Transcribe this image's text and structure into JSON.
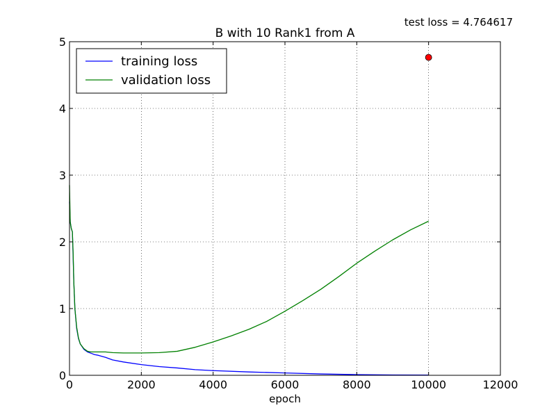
{
  "chart_data": {
    "type": "line",
    "title": "B with 10 Rank1 from A",
    "xlabel": "epoch",
    "ylabel": "",
    "xlim": [
      0,
      12000
    ],
    "ylim": [
      0,
      5
    ],
    "xticks": [
      0,
      2000,
      4000,
      6000,
      8000,
      10000,
      12000
    ],
    "yticks": [
      0,
      1,
      2,
      3,
      4,
      5
    ],
    "xtick_labels": [
      "0",
      "2000",
      "4000",
      "6000",
      "8000",
      "10000",
      "12000"
    ],
    "ytick_labels": [
      "0",
      "1",
      "2",
      "3",
      "4",
      "5"
    ],
    "grid": true,
    "legend_position": "top-left",
    "annotation": "test loss = 4.764617",
    "series": [
      {
        "name": "training loss",
        "color": "#0000ff",
        "x": [
          0,
          20,
          50,
          80,
          100,
          120,
          150,
          200,
          250,
          300,
          400,
          500,
          600,
          700,
          800,
          1000,
          1200,
          1500,
          2000,
          2500,
          3000,
          3500,
          4000,
          5000,
          6000,
          7000,
          8000,
          9000,
          10000
        ],
        "y": [
          2.6,
          2.3,
          2.2,
          2.15,
          1.8,
          1.4,
          1.0,
          0.7,
          0.55,
          0.47,
          0.39,
          0.35,
          0.33,
          0.31,
          0.3,
          0.27,
          0.23,
          0.2,
          0.16,
          0.13,
          0.11,
          0.085,
          0.07,
          0.05,
          0.035,
          0.02,
          0.01,
          0.005,
          0.003
        ]
      },
      {
        "name": "validation loss",
        "color": "#008000",
        "x": [
          0,
          20,
          50,
          80,
          100,
          120,
          150,
          200,
          250,
          300,
          400,
          500,
          600,
          800,
          1000,
          1200,
          1500,
          2000,
          2500,
          3000,
          3500,
          4000,
          4500,
          5000,
          5500,
          6000,
          6500,
          7000,
          7500,
          8000,
          8500,
          9000,
          9500,
          10000
        ],
        "y": [
          2.85,
          2.3,
          2.2,
          2.15,
          1.85,
          1.4,
          1.0,
          0.72,
          0.56,
          0.47,
          0.4,
          0.36,
          0.35,
          0.35,
          0.35,
          0.34,
          0.335,
          0.335,
          0.34,
          0.36,
          0.42,
          0.5,
          0.59,
          0.69,
          0.81,
          0.96,
          1.12,
          1.29,
          1.48,
          1.68,
          1.86,
          2.03,
          2.18,
          2.31
        ]
      }
    ],
    "points": [
      {
        "name": "test loss",
        "x": 10000,
        "y": 4.764617,
        "color": "#ff0000"
      }
    ]
  }
}
